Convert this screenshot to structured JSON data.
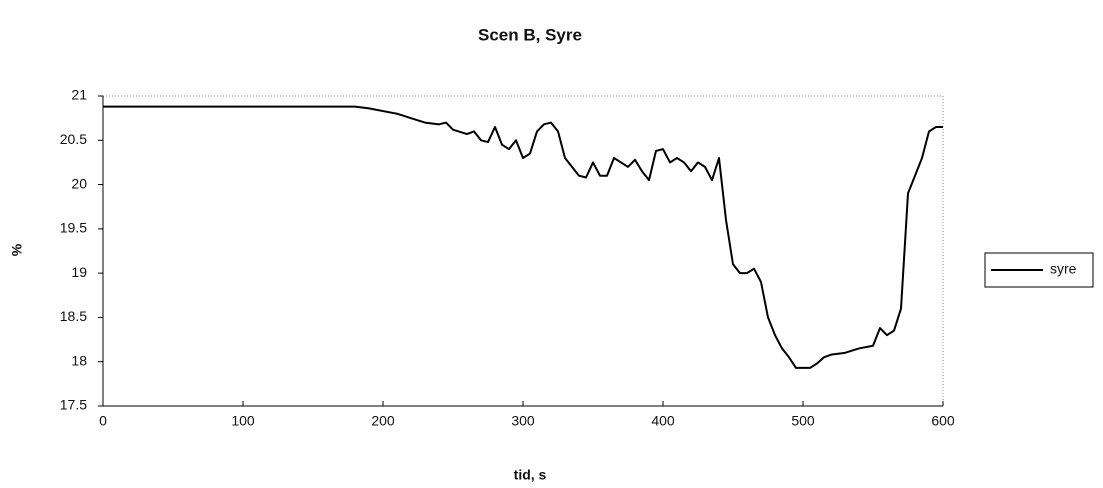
{
  "chart_data": {
    "type": "line",
    "title": "Scen B, Syre",
    "x_label": "tid, s",
    "y_label": "%",
    "x": [
      0,
      100,
      180,
      190,
      200,
      210,
      220,
      230,
      240,
      245,
      250,
      260,
      265,
      270,
      275,
      280,
      285,
      290,
      295,
      300,
      305,
      310,
      315,
      320,
      325,
      330,
      335,
      340,
      345,
      350,
      355,
      360,
      365,
      370,
      375,
      380,
      385,
      390,
      395,
      400,
      405,
      410,
      415,
      420,
      425,
      430,
      435,
      440,
      445,
      450,
      455,
      460,
      465,
      470,
      475,
      480,
      485,
      490,
      495,
      500,
      505,
      510,
      515,
      520,
      530,
      540,
      550,
      555,
      560,
      565,
      570,
      575,
      580,
      585,
      590,
      595,
      600
    ],
    "series": [
      {
        "name": "syre",
        "color": "#000000",
        "values": [
          20.88,
          20.88,
          20.88,
          20.86,
          20.83,
          20.8,
          20.75,
          20.7,
          20.68,
          20.7,
          20.62,
          20.57,
          20.6,
          20.5,
          20.48,
          20.65,
          20.45,
          20.4,
          20.5,
          20.3,
          20.35,
          20.6,
          20.68,
          20.7,
          20.6,
          20.3,
          20.2,
          20.1,
          20.08,
          20.25,
          20.1,
          20.1,
          20.3,
          20.25,
          20.2,
          20.28,
          20.15,
          20.05,
          20.38,
          20.4,
          20.25,
          20.3,
          20.25,
          20.15,
          20.25,
          20.2,
          20.05,
          20.3,
          19.6,
          19.1,
          19.0,
          19.0,
          19.05,
          18.9,
          18.5,
          18.3,
          18.15,
          18.05,
          17.93,
          17.93,
          17.93,
          17.98,
          18.05,
          18.08,
          18.1,
          18.15,
          18.18,
          18.38,
          18.3,
          18.35,
          18.6,
          19.9,
          20.1,
          20.3,
          20.6,
          20.65,
          20.65
        ]
      }
    ],
    "xlim": [
      0,
      600
    ],
    "xticks": [
      0,
      100,
      200,
      300,
      400,
      500,
      600
    ],
    "ylim": [
      17.5,
      21
    ],
    "yticks": [
      17.5,
      18,
      18.5,
      19,
      19.5,
      20,
      20.5,
      21
    ],
    "legend": "right"
  }
}
